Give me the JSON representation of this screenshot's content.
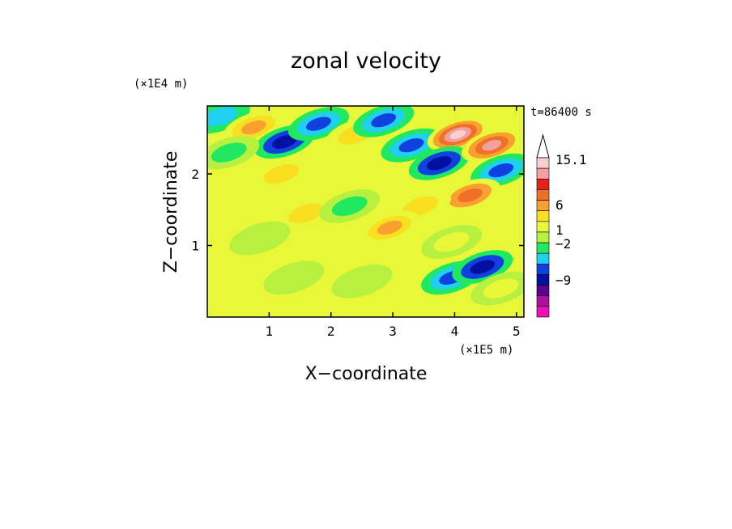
{
  "chart_data": {
    "type": "heatmap",
    "title": "zonal velocity",
    "xlabel": "X−coordinate",
    "ylabel": "Z−coordinate",
    "x_scale_label": "(×1E5 m)",
    "y_scale_label": "(×1E4 m)",
    "time_label": "t=86400 s",
    "xlim": [
      0,
      5.12
    ],
    "ylim": [
      0,
      2.95
    ],
    "x_ticks": [
      {
        "value": 1,
        "label": "1"
      },
      {
        "value": 2,
        "label": "2"
      },
      {
        "value": 3,
        "label": "3"
      },
      {
        "value": 4,
        "label": "4"
      },
      {
        "value": 5,
        "label": "5"
      }
    ],
    "y_ticks": [
      {
        "value": 1,
        "label": "1"
      },
      {
        "value": 2,
        "label": "2"
      }
    ],
    "colorbar": {
      "labels": [
        {
          "value": 15.1,
          "label": "15.1"
        },
        {
          "value": 6,
          "label": "6"
        },
        {
          "value": 1,
          "label": "1"
        },
        {
          "value": -2,
          "label": "−2"
        },
        {
          "value": -9,
          "label": "−9"
        }
      ],
      "colors_top_to_bottom": [
        "#f8d0d0",
        "#f4a0a0",
        "#e8201c",
        "#f07028",
        "#f8a030",
        "#f8e020",
        "#e8f838",
        "#b8f040",
        "#20e860",
        "#20d0f0",
        "#1040e0",
        "#0010a0",
        "#600090",
        "#b010a0",
        "#f010b8"
      ]
    },
    "legend_position": "right",
    "field": [
      {
        "x": 0.2,
        "z": 2.8,
        "u": -5
      },
      {
        "x": 0.75,
        "z": 2.65,
        "u": 6
      },
      {
        "x": 1.25,
        "z": 2.45,
        "u": -8
      },
      {
        "x": 1.8,
        "z": 2.7,
        "u": -7
      },
      {
        "x": 2.4,
        "z": 2.55,
        "u": 4
      },
      {
        "x": 2.85,
        "z": 2.75,
        "u": -6
      },
      {
        "x": 3.3,
        "z": 2.4,
        "u": -7
      },
      {
        "x": 4.05,
        "z": 2.55,
        "u": 15
      },
      {
        "x": 3.75,
        "z": 2.15,
        "u": -9
      },
      {
        "x": 4.6,
        "z": 2.4,
        "u": 12
      },
      {
        "x": 4.75,
        "z": 2.05,
        "u": -6
      },
      {
        "x": 4.25,
        "z": 1.7,
        "u": 8
      },
      {
        "x": 3.45,
        "z": 1.55,
        "u": 5
      },
      {
        "x": 2.95,
        "z": 1.25,
        "u": 6
      },
      {
        "x": 1.6,
        "z": 1.45,
        "u": 5
      },
      {
        "x": 0.65,
        "z": 1.65,
        "u": 3
      },
      {
        "x": 1.2,
        "z": 2.0,
        "u": 5
      },
      {
        "x": 2.3,
        "z": 1.55,
        "u": -2
      },
      {
        "x": 3.95,
        "z": 1.05,
        "u": 2
      },
      {
        "x": 0.45,
        "z": 0.85,
        "u": 3
      },
      {
        "x": 1.4,
        "z": 0.55,
        "u": 1
      },
      {
        "x": 2.5,
        "z": 0.5,
        "u": 1
      },
      {
        "x": 0.85,
        "z": 1.1,
        "u": -1
      },
      {
        "x": 3.95,
        "z": 0.55,
        "u": -6
      },
      {
        "x": 4.45,
        "z": 0.7,
        "u": -8
      },
      {
        "x": 4.75,
        "z": 0.4,
        "u": 2
      },
      {
        "x": 0.35,
        "z": 2.3,
        "u": -2
      }
    ]
  }
}
